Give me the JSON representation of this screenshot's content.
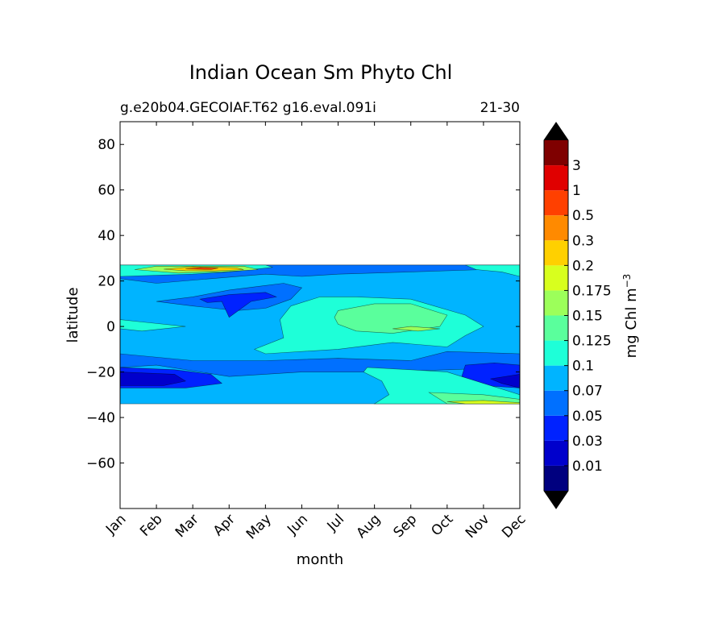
{
  "chart_data": {
    "type": "contour",
    "title": "Indian Ocean Sm Phyto Chl",
    "subtitle_left": "g.e20b04.GECOIAF.T62 g16.eval.091i",
    "subtitle_right": "21-30",
    "xlabel": "month",
    "ylabel": "latitude",
    "x_ticks": [
      "Jan",
      "Feb",
      "Mar",
      "Apr",
      "May",
      "Jun",
      "Jul",
      "Aug",
      "Sep",
      "Oct",
      "Nov",
      "Dec"
    ],
    "y_ticks": [
      "80",
      "60",
      "40",
      "20",
      "0",
      "−20",
      "−40",
      "−60"
    ],
    "ylim": [
      -80,
      90
    ],
    "data_lat_range": [
      -34,
      27
    ],
    "colorbar": {
      "label": "mg Chl m",
      "label_exponent": "−3",
      "levels": [
        "0.01",
        "0.03",
        "0.05",
        "0.07",
        "0.1",
        "0.125",
        "0.15",
        "0.175",
        "0.2",
        "0.3",
        "0.5",
        "1",
        "3"
      ],
      "colors": [
        "#00007f",
        "#0000cc",
        "#0022ff",
        "#0070ff",
        "#00b4ff",
        "#1effd8",
        "#5aff9c",
        "#9cff5a",
        "#d8ff1e",
        "#ffd000",
        "#ff8a00",
        "#ff4000",
        "#e00000",
        "#7f0000"
      ],
      "extend": "both",
      "under_color": "#000000",
      "over_color": "#000000"
    },
    "regions": [
      {
        "level_index": 4,
        "name": "background 0.07-0.1",
        "points": [
          [
            0,
            27
          ],
          [
            11,
            27
          ],
          [
            11,
            -34
          ],
          [
            0,
            -34
          ]
        ]
      },
      {
        "level_index": 3,
        "name": "north band 0.05-0.07",
        "points": [
          [
            0,
            21
          ],
          [
            1,
            19
          ],
          [
            2.5,
            21
          ],
          [
            4,
            23
          ],
          [
            5,
            22
          ],
          [
            6,
            23
          ],
          [
            8,
            24
          ],
          [
            10,
            25
          ],
          [
            11,
            26
          ],
          [
            11,
            27
          ],
          [
            0,
            27
          ]
        ]
      },
      {
        "level_index": 3,
        "name": "arabian sea low",
        "points": [
          [
            1,
            11
          ],
          [
            2,
            13
          ],
          [
            3,
            16
          ],
          [
            4,
            18
          ],
          [
            4.5,
            19
          ],
          [
            5,
            17
          ],
          [
            4.7,
            12
          ],
          [
            4,
            8
          ],
          [
            3.2,
            7
          ],
          [
            2,
            9
          ]
        ]
      },
      {
        "level_index": 2,
        "name": "arabian sea min",
        "points": [
          [
            2.2,
            12
          ],
          [
            3,
            14
          ],
          [
            4,
            15
          ],
          [
            4.3,
            13
          ],
          [
            3.6,
            11
          ],
          [
            3,
            4
          ],
          [
            2.8,
            11
          ],
          [
            2.4,
            10.5
          ]
        ]
      },
      {
        "level_index": 3,
        "name": "equatorial band",
        "points": [
          [
            0,
            -12
          ],
          [
            2,
            -15
          ],
          [
            4,
            -15
          ],
          [
            6,
            -14
          ],
          [
            8,
            -15
          ],
          [
            9,
            -11
          ],
          [
            11,
            -12
          ],
          [
            11,
            -18
          ],
          [
            9,
            -19
          ],
          [
            7,
            -20
          ],
          [
            5,
            -20
          ],
          [
            3,
            -22
          ],
          [
            1,
            -17
          ],
          [
            0,
            -18
          ]
        ]
      },
      {
        "level_index": 2,
        "name": "south subtropical low west",
        "points": [
          [
            0,
            -18
          ],
          [
            1.5,
            -19
          ],
          [
            2.5,
            -21
          ],
          [
            2.8,
            -25
          ],
          [
            1.8,
            -27
          ],
          [
            0,
            -27
          ]
        ]
      },
      {
        "level_index": 1,
        "name": "south subtropical min west",
        "points": [
          [
            0,
            -20
          ],
          [
            1.5,
            -21
          ],
          [
            1.8,
            -24
          ],
          [
            1.2,
            -26
          ],
          [
            0,
            -26
          ]
        ]
      },
      {
        "level_index": 2,
        "name": "south subtropical low east",
        "points": [
          [
            9.5,
            -17
          ],
          [
            10.3,
            -16
          ],
          [
            11,
            -17
          ],
          [
            11,
            -27
          ],
          [
            10,
            -26
          ],
          [
            9.4,
            -22
          ]
        ]
      },
      {
        "level_index": 1,
        "name": "south subtropical min east",
        "points": [
          [
            10.2,
            -23
          ],
          [
            11,
            -21
          ],
          [
            11,
            -27
          ],
          [
            10.5,
            -25
          ]
        ]
      },
      {
        "level_index": 5,
        "name": "central mesotrophic",
        "points": [
          [
            4.7,
            9
          ],
          [
            5.5,
            13
          ],
          [
            6.5,
            13
          ],
          [
            8,
            12
          ],
          [
            9.5,
            5
          ],
          [
            10,
            0
          ],
          [
            9.5,
            -4
          ],
          [
            9,
            -9
          ],
          [
            7.5,
            -7
          ],
          [
            6,
            -10
          ],
          [
            4,
            -12
          ],
          [
            3.7,
            -10
          ],
          [
            4.5,
            -5
          ],
          [
            4.4,
            3
          ]
        ]
      },
      {
        "level_index": 6,
        "name": "central maximum",
        "points": [
          [
            6,
            7
          ],
          [
            7,
            10
          ],
          [
            8,
            10
          ],
          [
            9,
            5
          ],
          [
            8.8,
            0
          ],
          [
            7.5,
            -3
          ],
          [
            6.5,
            -2
          ],
          [
            6,
            1
          ],
          [
            5.9,
            4
          ]
        ]
      },
      {
        "level_index": 7,
        "name": "central peak",
        "points": [
          [
            7.5,
            -1
          ],
          [
            8,
            0
          ],
          [
            8.8,
            -1
          ],
          [
            8.2,
            -2
          ]
        ]
      },
      {
        "level_index": 5,
        "name": "equatorial west patch",
        "points": [
          [
            0,
            3
          ],
          [
            0.6,
            2
          ],
          [
            1.8,
            0
          ],
          [
            0.6,
            -2
          ],
          [
            0,
            -1
          ]
        ]
      },
      {
        "level_index": 5,
        "name": "southern shelf",
        "points": [
          [
            6.8,
            -18
          ],
          [
            8,
            -19
          ],
          [
            9,
            -20
          ],
          [
            10,
            -25
          ],
          [
            11,
            -30
          ],
          [
            11,
            -34
          ],
          [
            7,
            -34
          ],
          [
            7.4,
            -30
          ],
          [
            7.2,
            -24
          ],
          [
            6.7,
            -20
          ]
        ]
      },
      {
        "level_index": 6,
        "name": "southern shelf high",
        "points": [
          [
            8.5,
            -29
          ],
          [
            10,
            -30
          ],
          [
            11,
            -32
          ],
          [
            11,
            -34
          ],
          [
            9,
            -34
          ]
        ]
      },
      {
        "level_index": 8,
        "name": "southern shelf peak",
        "points": [
          [
            9,
            -33
          ],
          [
            10,
            -32.5
          ],
          [
            11,
            -33.5
          ],
          [
            11,
            -34
          ],
          [
            9.5,
            -34
          ]
        ]
      },
      {
        "level_index": 5,
        "name": "northern coast band",
        "points": [
          [
            0,
            27
          ],
          [
            4,
            27
          ],
          [
            4.2,
            26
          ],
          [
            3,
            24
          ],
          [
            2,
            23
          ],
          [
            1,
            22.5
          ],
          [
            0,
            22
          ]
        ]
      },
      {
        "level_index": 7,
        "name": "northern coast high",
        "points": [
          [
            0.4,
            25
          ],
          [
            1,
            26.5
          ],
          [
            3.4,
            26.5
          ],
          [
            3.8,
            25
          ],
          [
            2.8,
            24
          ],
          [
            1.6,
            23.5
          ]
        ]
      },
      {
        "level_index": 9,
        "name": "northern coast peak",
        "points": [
          [
            1.2,
            25.2
          ],
          [
            2,
            26.2
          ],
          [
            3.2,
            25.8
          ],
          [
            3.4,
            25
          ],
          [
            2.6,
            24.4
          ],
          [
            1.8,
            24.5
          ]
        ]
      },
      {
        "level_index": 11,
        "name": "northern coast max",
        "points": [
          [
            1.8,
            25.3
          ],
          [
            2.2,
            25.9
          ],
          [
            2.7,
            25.6
          ],
          [
            2.5,
            25
          ]
        ]
      },
      {
        "level_index": 5,
        "name": "northeast coast band",
        "points": [
          [
            9.5,
            27
          ],
          [
            11,
            27
          ],
          [
            11,
            22
          ],
          [
            10.5,
            24
          ],
          [
            9.8,
            25
          ]
        ]
      }
    ]
  }
}
